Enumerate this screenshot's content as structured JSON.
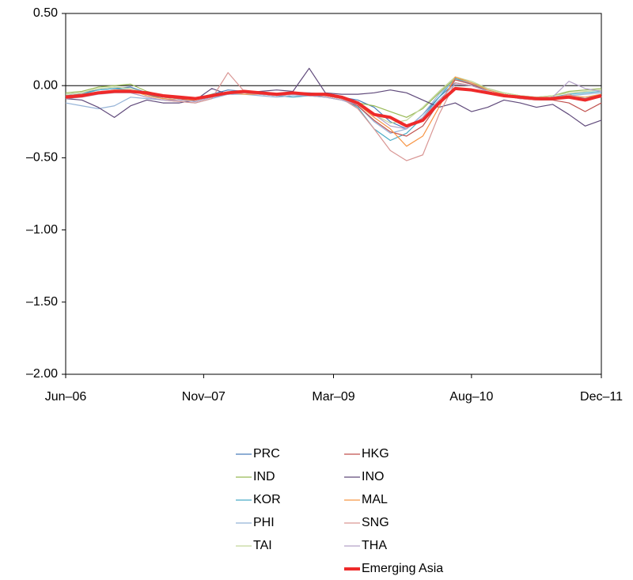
{
  "chart_data": {
    "type": "line",
    "x": [
      "2006-06",
      "2006-08",
      "2006-10",
      "2006-12",
      "2007-02",
      "2007-04",
      "2007-06",
      "2007-08",
      "2007-10",
      "2007-12",
      "2008-02",
      "2008-04",
      "2008-06",
      "2008-08",
      "2008-10",
      "2008-12",
      "2009-02",
      "2009-04",
      "2009-06",
      "2009-08",
      "2009-10",
      "2009-12",
      "2010-02",
      "2010-04",
      "2010-06",
      "2010-08",
      "2010-10",
      "2010-12",
      "2011-02",
      "2011-04",
      "2011-06",
      "2011-08",
      "2011-10",
      "2011-12"
    ],
    "xlim": [
      "2006-06",
      "2011-12"
    ],
    "xticks": [
      {
        "value": "2006-06",
        "label": "Jun–06"
      },
      {
        "value": "2007-11",
        "label": "Nov–07"
      },
      {
        "value": "2009-03",
        "label": "Mar–09"
      },
      {
        "value": "2010-08",
        "label": "Aug–10"
      },
      {
        "value": "2011-12",
        "label": "Dec–11"
      }
    ],
    "ylim": [
      -2,
      0.5
    ],
    "yticks": [
      {
        "value": 0.5,
        "label": "0.50"
      },
      {
        "value": 0,
        "label": "0.00"
      },
      {
        "value": -0.5,
        "label": "–0.50"
      },
      {
        "value": -1,
        "label": "–1.00"
      },
      {
        "value": -1.5,
        "label": "–1.50"
      },
      {
        "value": -2,
        "label": "–2.00"
      }
    ],
    "series": [
      {
        "name": "PRC",
        "color": "#4a7ebb",
        "line_width": 1.2,
        "values": [
          -0.06,
          -0.05,
          -0.03,
          -0.02,
          -0.01,
          -0.05,
          -0.08,
          -0.09,
          -0.1,
          -0.06,
          -0.03,
          -0.04,
          -0.05,
          -0.07,
          -0.05,
          -0.05,
          -0.06,
          -0.08,
          -0.1,
          -0.15,
          -0.25,
          -0.3,
          -0.2,
          -0.08,
          0.02,
          0.0,
          -0.03,
          -0.06,
          -0.08,
          -0.09,
          -0.08,
          -0.07,
          -0.09,
          -0.06
        ]
      },
      {
        "name": "IND",
        "color": "#98b954",
        "line_width": 1.2,
        "values": [
          -0.05,
          -0.04,
          -0.01,
          0.0,
          0.01,
          -0.04,
          -0.07,
          -0.08,
          -0.09,
          -0.06,
          -0.05,
          -0.05,
          -0.06,
          -0.07,
          -0.06,
          -0.07,
          -0.08,
          -0.1,
          -0.12,
          -0.14,
          -0.18,
          -0.22,
          -0.16,
          -0.05,
          0.05,
          0.02,
          -0.02,
          -0.05,
          -0.07,
          -0.08,
          -0.07,
          -0.04,
          -0.03,
          -0.02
        ]
      },
      {
        "name": "KOR",
        "color": "#4bacc6",
        "line_width": 1.2,
        "values": [
          -0.07,
          -0.06,
          -0.03,
          -0.02,
          -0.03,
          -0.06,
          -0.09,
          -0.1,
          -0.11,
          -0.08,
          -0.05,
          -0.05,
          -0.06,
          -0.07,
          -0.08,
          -0.07,
          -0.07,
          -0.09,
          -0.15,
          -0.3,
          -0.38,
          -0.33,
          -0.22,
          -0.08,
          0.05,
          0.01,
          -0.03,
          -0.06,
          -0.08,
          -0.09,
          -0.08,
          -0.06,
          -0.05,
          -0.04
        ]
      },
      {
        "name": "PHI",
        "color": "#95b3d7",
        "line_width": 1.2,
        "values": [
          -0.12,
          -0.14,
          -0.16,
          -0.14,
          -0.08,
          -0.09,
          -0.1,
          -0.11,
          -0.12,
          -0.09,
          -0.06,
          -0.06,
          -0.07,
          -0.08,
          -0.07,
          -0.07,
          -0.08,
          -0.1,
          -0.14,
          -0.25,
          -0.33,
          -0.3,
          -0.2,
          -0.06,
          0.04,
          0.02,
          -0.03,
          -0.06,
          -0.08,
          -0.09,
          -0.08,
          -0.07,
          -0.06,
          -0.05
        ]
      },
      {
        "name": "TAI",
        "color": "#c3d69b",
        "line_width": 1.2,
        "values": [
          -0.06,
          -0.05,
          -0.02,
          -0.01,
          -0.02,
          -0.05,
          -0.08,
          -0.09,
          -0.1,
          -0.07,
          -0.05,
          -0.05,
          -0.06,
          -0.07,
          -0.06,
          -0.06,
          -0.07,
          -0.09,
          -0.12,
          -0.2,
          -0.26,
          -0.24,
          -0.15,
          -0.04,
          0.06,
          0.03,
          -0.02,
          -0.05,
          -0.07,
          -0.08,
          -0.07,
          -0.05,
          -0.04,
          -0.03
        ]
      },
      {
        "name": "HKG",
        "color": "#c0504d",
        "line_width": 1.2,
        "values": [
          -0.07,
          -0.06,
          -0.05,
          -0.04,
          -0.04,
          -0.06,
          -0.08,
          -0.09,
          -0.11,
          -0.08,
          -0.05,
          -0.04,
          -0.05,
          -0.06,
          -0.05,
          -0.06,
          -0.07,
          -0.09,
          -0.14,
          -0.24,
          -0.32,
          -0.35,
          -0.28,
          -0.12,
          0.04,
          0.01,
          -0.04,
          -0.07,
          -0.09,
          -0.1,
          -0.1,
          -0.12,
          -0.18,
          -0.12
        ]
      },
      {
        "name": "INO",
        "color": "#604a7b",
        "line_width": 1.2,
        "values": [
          -0.09,
          -0.1,
          -0.15,
          -0.22,
          -0.14,
          -0.1,
          -0.12,
          -0.12,
          -0.1,
          -0.02,
          -0.06,
          -0.05,
          -0.04,
          -0.03,
          -0.04,
          0.12,
          -0.05,
          -0.06,
          -0.06,
          -0.05,
          -0.03,
          -0.05,
          -0.1,
          -0.15,
          -0.12,
          -0.18,
          -0.15,
          -0.1,
          -0.12,
          -0.15,
          -0.13,
          -0.2,
          -0.28,
          -0.24
        ]
      },
      {
        "name": "MAL",
        "color": "#f79646",
        "line_width": 1.2,
        "values": [
          -0.08,
          -0.07,
          -0.05,
          -0.03,
          -0.03,
          -0.07,
          -0.09,
          -0.1,
          -0.1,
          -0.07,
          -0.05,
          -0.06,
          -0.06,
          -0.07,
          -0.06,
          -0.06,
          -0.07,
          -0.09,
          -0.13,
          -0.22,
          -0.3,
          -0.42,
          -0.35,
          -0.15,
          0.06,
          0.02,
          -0.03,
          -0.06,
          -0.08,
          -0.09,
          -0.08,
          -0.07,
          -0.08,
          -0.06
        ]
      },
      {
        "name": "SNG",
        "color": "#d99694",
        "line_width": 1.2,
        "values": [
          -0.08,
          -0.07,
          -0.05,
          -0.04,
          -0.05,
          -0.08,
          -0.1,
          -0.11,
          -0.12,
          -0.09,
          0.09,
          -0.04,
          -0.06,
          -0.07,
          -0.06,
          -0.06,
          -0.07,
          -0.09,
          -0.16,
          -0.3,
          -0.45,
          -0.52,
          -0.48,
          -0.2,
          0.02,
          0.0,
          -0.04,
          -0.07,
          -0.09,
          -0.1,
          -0.09,
          -0.06,
          -0.1,
          -0.08
        ]
      },
      {
        "name": "THA",
        "color": "#b3a2c7",
        "line_width": 1.2,
        "values": [
          -0.09,
          -0.08,
          -0.06,
          -0.05,
          -0.05,
          -0.08,
          -0.1,
          -0.1,
          -0.11,
          -0.08,
          -0.06,
          -0.05,
          -0.06,
          -0.07,
          -0.06,
          -0.07,
          -0.08,
          -0.1,
          -0.13,
          -0.2,
          -0.28,
          -0.3,
          -0.22,
          -0.1,
          0.01,
          0.0,
          -0.04,
          -0.07,
          -0.09,
          -0.09,
          -0.08,
          0.03,
          -0.02,
          -0.04
        ]
      },
      {
        "name": "Emerging Asia",
        "color": "#ee2a2a",
        "line_width": 4,
        "values": [
          -0.08,
          -0.07,
          -0.05,
          -0.04,
          -0.04,
          -0.05,
          -0.07,
          -0.08,
          -0.09,
          -0.07,
          -0.05,
          -0.04,
          -0.05,
          -0.06,
          -0.05,
          -0.06,
          -0.06,
          -0.08,
          -0.12,
          -0.2,
          -0.22,
          -0.28,
          -0.24,
          -0.12,
          -0.02,
          -0.03,
          -0.05,
          -0.07,
          -0.08,
          -0.09,
          -0.09,
          -0.08,
          -0.1,
          -0.07
        ]
      }
    ]
  }
}
